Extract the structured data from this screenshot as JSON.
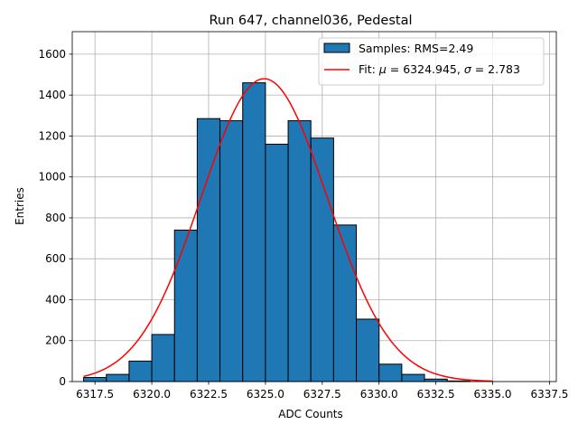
{
  "chart_data": {
    "type": "bar",
    "title": "Run 647, channel036, Pedestal",
    "xlabel": "ADC Counts",
    "ylabel": "Entries",
    "xlim": [
      6316.5,
      6337.8
    ],
    "ylim": [
      0,
      1710
    ],
    "grid": true,
    "legend_placement": "top-right",
    "xticks": [
      "6317.5",
      "6320.0",
      "6322.5",
      "6325.0",
      "6327.5",
      "6330.0",
      "6332.5",
      "6335.0",
      "6337.5"
    ],
    "xtick_values": [
      6317.5,
      6320.0,
      6322.5,
      6325.0,
      6327.5,
      6330.0,
      6332.5,
      6335.0,
      6337.5
    ],
    "yticks": [
      "0",
      "200",
      "400",
      "600",
      "800",
      "1000",
      "1200",
      "1400",
      "1600"
    ],
    "ytick_values": [
      0,
      200,
      400,
      600,
      800,
      1000,
      1200,
      1400,
      1600
    ],
    "histogram": {
      "name": "Samples: RMS=2.49",
      "color": "#1f77b4",
      "bin_edges": [
        6317.0,
        6318.0,
        6319.0,
        6320.0,
        6321.0,
        6322.0,
        6323.0,
        6324.0,
        6325.0,
        6326.0,
        6327.0,
        6328.0,
        6329.0,
        6330.0,
        6331.0,
        6332.0,
        6333.0,
        6334.0,
        6335.0,
        6336.0,
        6337.0
      ],
      "counts": [
        20,
        35,
        100,
        230,
        740,
        1285,
        1275,
        1460,
        1160,
        1275,
        1190,
        765,
        305,
        85,
        35,
        12,
        3,
        0,
        0,
        0
      ]
    },
    "fit": {
      "name": "Fit: $\\mu$ = 6324.945, $\\sigma$ = 2.783",
      "label_prefix": "Fit: ",
      "mu_symbol": "μ",
      "mu_value": " = 6324.945, ",
      "sigma_symbol": "σ",
      "sigma_value": " = 2.783",
      "color": "#ff0000",
      "mu": 6324.945,
      "sigma": 2.783,
      "amplitude": 1480,
      "x_range": [
        6317.0,
        6335.0
      ]
    }
  }
}
